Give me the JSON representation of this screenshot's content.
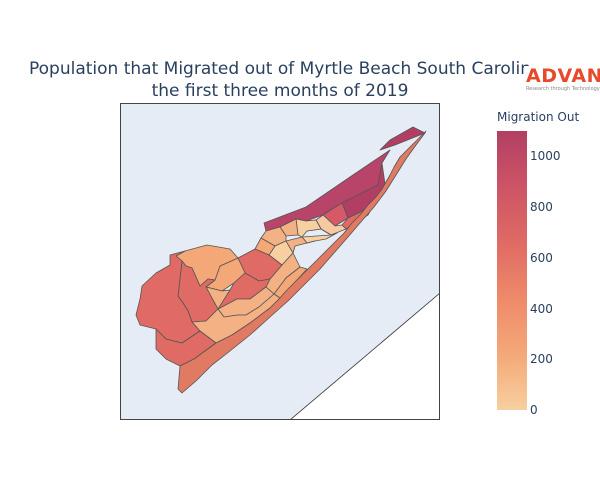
{
  "title": {
    "line1": "Population that Migrated out of Myrtle Beach South Carolin",
    "line2": "the first three months of 2019"
  },
  "logo": {
    "brand": "ADVAN",
    "tagline": "Research through Technology"
  },
  "colorbar": {
    "title": "Migration Out",
    "ticks": [
      "1000",
      "800",
      "600",
      "400",
      "200",
      "0"
    ],
    "range": [
      0,
      1100
    ]
  },
  "colors": {
    "water": "#e5ecf6",
    "low": "#f7cfa0",
    "high": "#b23f63",
    "border": "#555555"
  }
}
